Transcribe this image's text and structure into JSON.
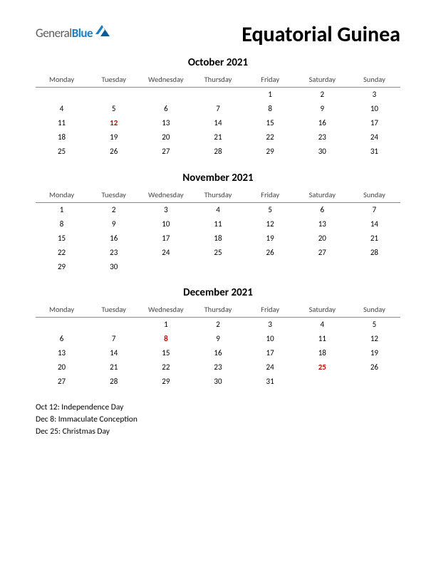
{
  "logo": {
    "general": "General",
    "blue": "Blue",
    "icon_color": "#1a7fc4"
  },
  "title": "Equatorial Guinea",
  "weekday_headers": [
    "Monday",
    "Tuesday",
    "Wednesday",
    "Thursday",
    "Friday",
    "Saturday",
    "Sunday"
  ],
  "holiday_color": "#cc0000",
  "months": [
    {
      "title": "October 2021",
      "weeks": [
        [
          "",
          "",
          "",
          "",
          "1",
          "2",
          "3"
        ],
        [
          "4",
          "5",
          "6",
          "7",
          "8",
          "9",
          "10"
        ],
        [
          "11",
          "12",
          "13",
          "14",
          "15",
          "16",
          "17"
        ],
        [
          "18",
          "19",
          "20",
          "21",
          "22",
          "23",
          "24"
        ],
        [
          "25",
          "26",
          "27",
          "28",
          "29",
          "30",
          "31"
        ]
      ],
      "holidays": [
        "12"
      ]
    },
    {
      "title": "November 2021",
      "weeks": [
        [
          "1",
          "2",
          "3",
          "4",
          "5",
          "6",
          "7"
        ],
        [
          "8",
          "9",
          "10",
          "11",
          "12",
          "13",
          "14"
        ],
        [
          "15",
          "16",
          "17",
          "18",
          "19",
          "20",
          "21"
        ],
        [
          "22",
          "23",
          "24",
          "25",
          "26",
          "27",
          "28"
        ],
        [
          "29",
          "30",
          "",
          "",
          "",
          "",
          ""
        ]
      ],
      "holidays": []
    },
    {
      "title": "December 2021",
      "weeks": [
        [
          "",
          "",
          "1",
          "2",
          "3",
          "4",
          "5"
        ],
        [
          "6",
          "7",
          "8",
          "9",
          "10",
          "11",
          "12"
        ],
        [
          "13",
          "14",
          "15",
          "16",
          "17",
          "18",
          "19"
        ],
        [
          "20",
          "21",
          "22",
          "23",
          "24",
          "25",
          "26"
        ],
        [
          "27",
          "28",
          "29",
          "30",
          "31",
          "",
          ""
        ]
      ],
      "holidays": [
        "8",
        "25"
      ]
    }
  ],
  "holiday_list": [
    "Oct 12: Independence Day",
    "Dec 8: Immaculate Conception",
    "Dec 25: Christmas Day"
  ]
}
